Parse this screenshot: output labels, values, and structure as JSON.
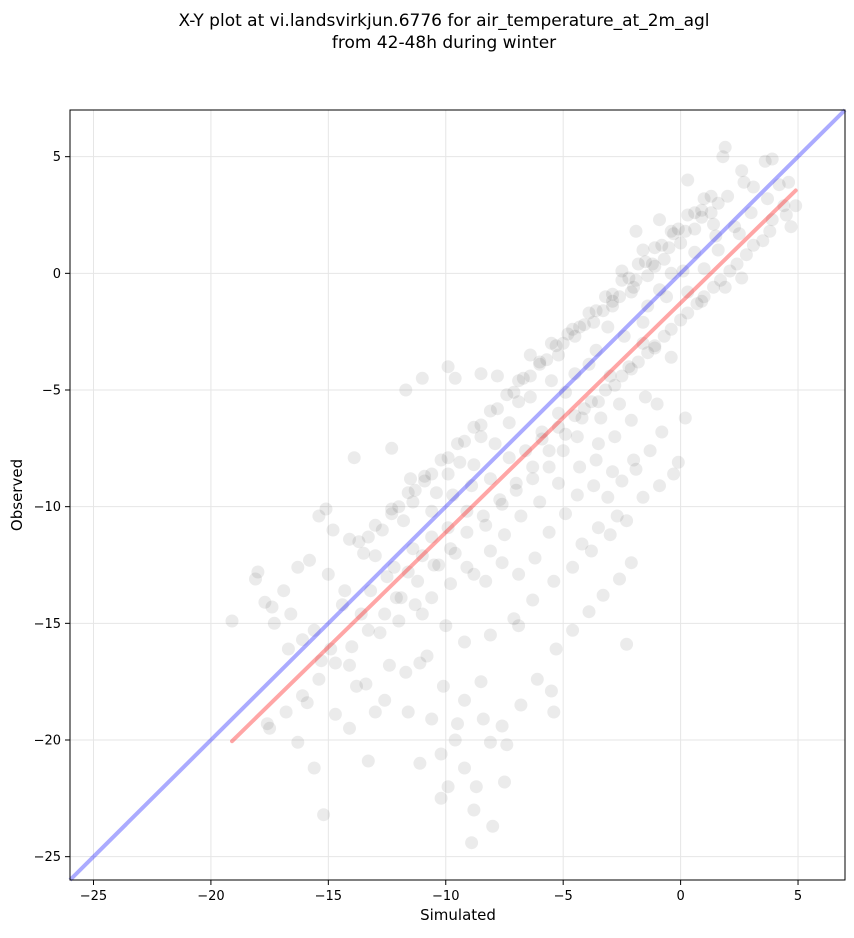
{
  "chart_data": {
    "type": "scatter",
    "title_line1": "X-Y plot at vi.landsvirkjun.6776 for air_temperature_at_2m_agl",
    "title_line2": "from 42-48h during winter",
    "xlabel": "Simulated",
    "ylabel": "Observed",
    "xlim": [
      -26,
      7
    ],
    "ylim": [
      -26,
      7
    ],
    "xticks": [
      -25,
      -20,
      -15,
      -10,
      -5,
      0,
      5
    ],
    "yticks": [
      -25,
      -20,
      -15,
      -10,
      -5,
      0,
      5
    ],
    "xtick_labels": [
      "−25",
      "−20",
      "−15",
      "−10",
      "−5",
      "0",
      "5"
    ],
    "ytick_labels": [
      "−25",
      "−20",
      "−15",
      "−10",
      "−5",
      "0",
      "5"
    ],
    "grid": true,
    "point_color": "#000000",
    "point_alpha": 0.08,
    "identity_line": {
      "color": "#0000ff",
      "alpha": 0.33,
      "from": [
        -26,
        -26
      ],
      "to": [
        7,
        7
      ]
    },
    "fit_line": {
      "color": "#ff0000",
      "alpha": 0.35,
      "from": [
        -19.1,
        -20.05
      ],
      "to": [
        4.9,
        3.55
      ]
    },
    "points": [
      [
        4.9,
        2.9
      ],
      [
        4.6,
        3.9
      ],
      [
        3.9,
        4.9
      ],
      [
        3.6,
        4.8
      ],
      [
        1.9,
        5.4
      ],
      [
        1.8,
        5.0
      ],
      [
        0.3,
        4.0
      ],
      [
        2.6,
        4.4
      ],
      [
        3.1,
        3.7
      ],
      [
        3.9,
        2.3
      ],
      [
        4.4,
        2.9
      ],
      [
        2.5,
        1.7
      ],
      [
        1.4,
        2.1
      ],
      [
        0.9,
        2.7
      ],
      [
        1.6,
        1.0
      ],
      [
        2.6,
        -0.2
      ],
      [
        1.9,
        -0.6
      ],
      [
        0.6,
        0.9
      ],
      [
        0.1,
        0.1
      ],
      [
        -0.4,
        0.0
      ],
      [
        -0.9,
        -0.7
      ],
      [
        -1.1,
        0.3
      ],
      [
        -1.4,
        -1.4
      ],
      [
        -0.6,
        -1.0
      ],
      [
        0.3,
        -0.8
      ],
      [
        0.9,
        -1.2
      ],
      [
        1.5,
        1.6
      ],
      [
        1.0,
        0.2
      ],
      [
        -0.3,
        1.7
      ],
      [
        -0.9,
        2.3
      ],
      [
        -1.9,
        1.8
      ],
      [
        -1.6,
        1.0
      ],
      [
        -2.5,
        0.1
      ],
      [
        -2.0,
        -0.6
      ],
      [
        -2.9,
        -1.2
      ],
      [
        -3.1,
        -2.3
      ],
      [
        -2.4,
        -2.7
      ],
      [
        -1.6,
        -2.1
      ],
      [
        -1.1,
        -3.2
      ],
      [
        -0.4,
        -3.6
      ],
      [
        -1.6,
        -3.0
      ],
      [
        -2.2,
        -4.0
      ],
      [
        -3.0,
        -4.4
      ],
      [
        -3.6,
        -3.3
      ],
      [
        -3.9,
        -3.9
      ],
      [
        -4.5,
        -4.3
      ],
      [
        -4.9,
        -5.1
      ],
      [
        -5.5,
        -4.6
      ],
      [
        -4.1,
        -5.8
      ],
      [
        -3.4,
        -6.2
      ],
      [
        -2.6,
        -5.6
      ],
      [
        -2.1,
        -6.3
      ],
      [
        -1.5,
        -5.3
      ],
      [
        -1.0,
        -5.6
      ],
      [
        -2.8,
        -7.0
      ],
      [
        -3.5,
        -7.3
      ],
      [
        -4.4,
        -7.0
      ],
      [
        -5.2,
        -6.0
      ],
      [
        -5.9,
        -6.8
      ],
      [
        -6.4,
        -5.3
      ],
      [
        -6.9,
        -5.5
      ],
      [
        -7.3,
        -6.4
      ],
      [
        -7.9,
        -7.3
      ],
      [
        -8.5,
        -7.0
      ],
      [
        -8.8,
        -8.2
      ],
      [
        -9.4,
        -8.1
      ],
      [
        -9.9,
        -8.6
      ],
      [
        -10.4,
        -9.4
      ],
      [
        -10.9,
        -8.9
      ],
      [
        -11.4,
        -9.8
      ],
      [
        -11.8,
        -10.6
      ],
      [
        -12.3,
        -10.3
      ],
      [
        -12.7,
        -11.0
      ],
      [
        -13.3,
        -11.3
      ],
      [
        -13.0,
        -12.1
      ],
      [
        -12.2,
        -12.6
      ],
      [
        -11.4,
        -11.8
      ],
      [
        -10.6,
        -11.3
      ],
      [
        -9.9,
        -10.9
      ],
      [
        -9.1,
        -10.2
      ],
      [
        -8.3,
        -10.8
      ],
      [
        -7.6,
        -9.9
      ],
      [
        -7.0,
        -9.3
      ],
      [
        -6.3,
        -8.8
      ],
      [
        -5.6,
        -8.3
      ],
      [
        -5.0,
        -7.6
      ],
      [
        -4.3,
        -8.3
      ],
      [
        -3.7,
        -9.1
      ],
      [
        -3.1,
        -9.6
      ],
      [
        -2.5,
        -8.9
      ],
      [
        -1.9,
        -8.4
      ],
      [
        -2.7,
        -10.4
      ],
      [
        -3.5,
        -10.9
      ],
      [
        -4.2,
        -11.6
      ],
      [
        -4.9,
        -10.3
      ],
      [
        -5.6,
        -11.1
      ],
      [
        -6.2,
        -12.2
      ],
      [
        -6.9,
        -12.9
      ],
      [
        -7.6,
        -12.4
      ],
      [
        -8.3,
        -13.2
      ],
      [
        -9.1,
        -12.6
      ],
      [
        -9.8,
        -13.3
      ],
      [
        -10.6,
        -13.9
      ],
      [
        -11.3,
        -14.2
      ],
      [
        -12.0,
        -14.9
      ],
      [
        -12.8,
        -15.4
      ],
      [
        -13.6,
        -14.6
      ],
      [
        -14.3,
        -13.6
      ],
      [
        -15.0,
        -12.9
      ],
      [
        -15.8,
        -12.3
      ],
      [
        -16.3,
        -12.6
      ],
      [
        -16.9,
        -13.6
      ],
      [
        -17.4,
        -14.3
      ],
      [
        -18.1,
        -13.1
      ],
      [
        -18.0,
        -12.8
      ],
      [
        -17.7,
        -14.1
      ],
      [
        -16.6,
        -14.6
      ],
      [
        -15.6,
        -15.3
      ],
      [
        -14.9,
        -16.1
      ],
      [
        -14.1,
        -16.8
      ],
      [
        -13.4,
        -17.6
      ],
      [
        -12.6,
        -18.3
      ],
      [
        -11.7,
        -17.1
      ],
      [
        -10.8,
        -16.4
      ],
      [
        -10.1,
        -17.7
      ],
      [
        -9.2,
        -18.3
      ],
      [
        -8.4,
        -19.1
      ],
      [
        -7.6,
        -19.4
      ],
      [
        -6.8,
        -18.5
      ],
      [
        -6.1,
        -17.4
      ],
      [
        -5.3,
        -16.1
      ],
      [
        -4.6,
        -15.3
      ],
      [
        -3.9,
        -14.5
      ],
      [
        -3.3,
        -13.8
      ],
      [
        -2.6,
        -13.1
      ],
      [
        -2.1,
        -12.4
      ],
      [
        -2.3,
        -15.9
      ],
      [
        -5.4,
        -18.8
      ],
      [
        -5.5,
        -17.9
      ],
      [
        -6.9,
        -15.1
      ],
      [
        -8.5,
        -17.5
      ],
      [
        -8.1,
        -20.1
      ],
      [
        -7.4,
        -20.2
      ],
      [
        -7.5,
        -21.8
      ],
      [
        -8.7,
        -22.0
      ],
      [
        -9.2,
        -21.2
      ],
      [
        -9.6,
        -20.0
      ],
      [
        -9.9,
        -22.0
      ],
      [
        -10.2,
        -22.5
      ],
      [
        -10.2,
        -20.6
      ],
      [
        -11.1,
        -21.0
      ],
      [
        -13.3,
        -20.9
      ],
      [
        -15.2,
        -23.2
      ],
      [
        -15.6,
        -21.2
      ],
      [
        -16.3,
        -20.1
      ],
      [
        -17.6,
        -19.3
      ],
      [
        -19.1,
        -14.9
      ],
      [
        -14.1,
        -19.5
      ],
      [
        -13.0,
        -18.8
      ],
      [
        -11.6,
        -18.8
      ],
      [
        -8.9,
        -24.4
      ],
      [
        -8.8,
        -23.0
      ],
      [
        -8.0,
        -23.7
      ],
      [
        -9.5,
        -19.3
      ],
      [
        -10.6,
        -19.1
      ],
      [
        -11.1,
        -16.7
      ],
      [
        -12.4,
        -16.8
      ],
      [
        -13.8,
        -17.7
      ],
      [
        -14.7,
        -18.9
      ],
      [
        -15.9,
        -18.4
      ],
      [
        -15.3,
        -16.6
      ],
      [
        -16.1,
        -15.7
      ],
      [
        -16.7,
        -16.1
      ],
      [
        -17.3,
        -15.0
      ],
      [
        -14.4,
        -14.2
      ],
      [
        -13.2,
        -13.6
      ],
      [
        -12.1,
        -13.9
      ],
      [
        -11.0,
        -14.6
      ],
      [
        -10.0,
        -15.1
      ],
      [
        -9.2,
        -15.8
      ],
      [
        -8.1,
        -15.5
      ],
      [
        -7.1,
        -14.8
      ],
      [
        -6.3,
        -14.0
      ],
      [
        -5.4,
        -13.2
      ],
      [
        -4.6,
        -12.6
      ],
      [
        -3.8,
        -11.9
      ],
      [
        -3.0,
        -11.2
      ],
      [
        -2.3,
        -10.6
      ],
      [
        -1.6,
        -9.6
      ],
      [
        -0.9,
        -9.1
      ],
      [
        -0.3,
        -8.6
      ],
      [
        -0.1,
        -8.1
      ],
      [
        0.2,
        -6.2
      ],
      [
        -0.8,
        -6.8
      ],
      [
        -1.3,
        -7.6
      ],
      [
        -2.0,
        -8.0
      ],
      [
        -2.9,
        -8.5
      ],
      [
        -3.6,
        -8.0
      ],
      [
        -4.4,
        -9.5
      ],
      [
        -5.2,
        -9.0
      ],
      [
        -6.0,
        -9.8
      ],
      [
        -6.8,
        -10.4
      ],
      [
        -7.5,
        -11.2
      ],
      [
        -8.1,
        -11.9
      ],
      [
        -8.8,
        -12.9
      ],
      [
        -9.6,
        -12.0
      ],
      [
        -10.3,
        -12.5
      ],
      [
        -11.0,
        -12.1
      ],
      [
        -11.6,
        -12.8
      ],
      [
        -12.5,
        -13.0
      ],
      [
        -13.5,
        -12.0
      ],
      [
        -14.1,
        -11.4
      ],
      [
        -14.8,
        -11.0
      ],
      [
        -15.4,
        -10.4
      ],
      [
        -15.1,
        -10.1
      ],
      [
        -13.9,
        -7.9
      ],
      [
        -12.3,
        -7.5
      ],
      [
        -11.5,
        -8.8
      ],
      [
        -10.6,
        -10.2
      ],
      [
        -9.7,
        -9.5
      ],
      [
        -8.9,
        -9.1
      ],
      [
        -8.1,
        -8.8
      ],
      [
        -7.3,
        -7.9
      ],
      [
        -6.6,
        -7.6
      ],
      [
        -5.9,
        -7.1
      ],
      [
        -5.2,
        -6.6
      ],
      [
        -4.5,
        -6.1
      ],
      [
        -3.8,
        -5.5
      ],
      [
        -3.2,
        -5.0
      ],
      [
        -2.5,
        -4.4
      ],
      [
        -1.8,
        -3.8
      ],
      [
        -1.1,
        -3.1
      ],
      [
        -0.4,
        -2.4
      ],
      [
        0.3,
        -1.7
      ],
      [
        1.0,
        -1.0
      ],
      [
        1.7,
        -0.3
      ],
      [
        2.4,
        0.4
      ],
      [
        3.1,
        1.2
      ],
      [
        3.8,
        1.8
      ],
      [
        4.5,
        2.5
      ],
      [
        -11.0,
        -4.5
      ],
      [
        -11.7,
        -5.0
      ],
      [
        -9.9,
        -4.0
      ],
      [
        -9.6,
        -4.5
      ],
      [
        -8.5,
        -4.3
      ],
      [
        -7.8,
        -4.4
      ],
      [
        -6.9,
        -4.6
      ],
      [
        -6.0,
        -3.9
      ],
      [
        -5.2,
        -3.5
      ],
      [
        -4.5,
        -2.7
      ],
      [
        -3.7,
        -2.1
      ],
      [
        -2.9,
        -1.4
      ],
      [
        -2.1,
        -0.8
      ],
      [
        -1.4,
        -0.1
      ],
      [
        -0.7,
        0.6
      ],
      [
        0.0,
        1.3
      ],
      [
        0.6,
        1.9
      ],
      [
        1.3,
        2.6
      ],
      [
        2.0,
        3.3
      ],
      [
        2.7,
        3.9
      ],
      [
        -6.4,
        -3.5
      ],
      [
        -5.5,
        -3.0
      ],
      [
        -4.8,
        -2.6
      ],
      [
        -4.1,
        -2.2
      ],
      [
        -3.3,
        -1.6
      ],
      [
        -2.6,
        -1.0
      ],
      [
        -1.9,
        -0.3
      ],
      [
        -1.2,
        0.4
      ],
      [
        -0.5,
        1.1
      ],
      [
        0.2,
        1.8
      ],
      [
        0.9,
        2.4
      ],
      [
        1.6,
        3.0
      ],
      [
        2.3,
        2.0
      ],
      [
        3.0,
        2.6
      ],
      [
        3.7,
        3.2
      ],
      [
        4.2,
        3.8
      ],
      [
        4.7,
        2.0
      ],
      [
        3.5,
        1.4
      ],
      [
        2.8,
        0.8
      ],
      [
        2.1,
        0.1
      ],
      [
        1.4,
        -0.6
      ],
      [
        0.7,
        -1.3
      ],
      [
        0.0,
        -2.0
      ],
      [
        -0.7,
        -2.7
      ],
      [
        -1.4,
        -3.4
      ],
      [
        -2.1,
        -4.1
      ],
      [
        -2.8,
        -4.8
      ],
      [
        -3.5,
        -5.5
      ],
      [
        -4.2,
        -6.2
      ],
      [
        -4.9,
        -6.9
      ],
      [
        -5.6,
        -7.6
      ],
      [
        -6.3,
        -8.3
      ],
      [
        -7.0,
        -9.0
      ],
      [
        -7.7,
        -9.7
      ],
      [
        -8.4,
        -10.4
      ],
      [
        -9.1,
        -11.1
      ],
      [
        -9.8,
        -11.8
      ],
      [
        -10.5,
        -12.5
      ],
      [
        -11.2,
        -13.2
      ],
      [
        -11.9,
        -13.9
      ],
      [
        -12.6,
        -14.6
      ],
      [
        -13.3,
        -15.3
      ],
      [
        -14.0,
        -16.0
      ],
      [
        -14.7,
        -16.7
      ],
      [
        -15.4,
        -17.4
      ],
      [
        -16.1,
        -18.1
      ],
      [
        -16.8,
        -18.8
      ],
      [
        -17.5,
        -19.5
      ],
      [
        -12.0,
        -10.0
      ],
      [
        -11.3,
        -9.3
      ],
      [
        -10.6,
        -8.6
      ],
      [
        -9.9,
        -7.9
      ],
      [
        -9.2,
        -7.2
      ],
      [
        -8.5,
        -6.5
      ],
      [
        -7.8,
        -5.8
      ],
      [
        -7.1,
        -5.1
      ],
      [
        -6.4,
        -4.4
      ],
      [
        -5.7,
        -3.7
      ],
      [
        -5.0,
        -3.0
      ],
      [
        -4.3,
        -2.3
      ],
      [
        -3.6,
        -1.6
      ],
      [
        -2.9,
        -0.9
      ],
      [
        -2.2,
        -0.2
      ],
      [
        -1.5,
        0.5
      ],
      [
        -0.8,
        1.2
      ],
      [
        -0.1,
        1.9
      ],
      [
        0.6,
        2.6
      ],
      [
        1.3,
        3.3
      ],
      [
        -13.7,
        -11.5
      ],
      [
        -13.0,
        -10.8
      ],
      [
        -12.3,
        -10.1
      ],
      [
        -11.6,
        -9.4
      ],
      [
        -10.9,
        -8.7
      ],
      [
        -10.2,
        -8.0
      ],
      [
        -9.5,
        -7.3
      ],
      [
        -8.8,
        -6.6
      ],
      [
        -8.1,
        -5.9
      ],
      [
        -7.4,
        -5.2
      ],
      [
        -6.7,
        -4.5
      ],
      [
        -6.0,
        -3.8
      ],
      [
        -5.3,
        -3.1
      ],
      [
        -4.6,
        -2.4
      ],
      [
        -3.9,
        -1.7
      ],
      [
        -3.2,
        -1.0
      ],
      [
        -2.5,
        -0.3
      ],
      [
        -1.8,
        0.4
      ],
      [
        -1.1,
        1.1
      ],
      [
        -0.4,
        1.8
      ],
      [
        0.3,
        2.5
      ],
      [
        1.0,
        3.2
      ]
    ]
  }
}
